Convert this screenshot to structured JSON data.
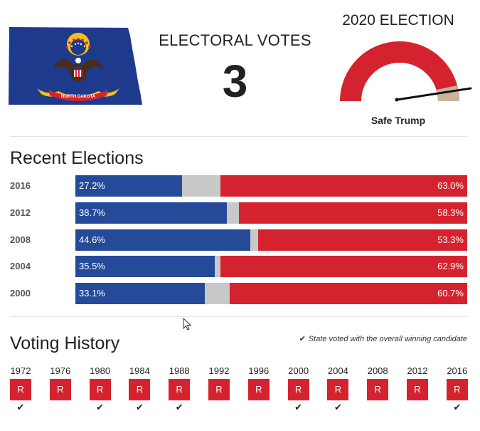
{
  "header": {
    "electoral_votes_label": "ELECTORAL VOTES",
    "electoral_votes": "3",
    "election_title": "2020 ELECTION",
    "rating": "Safe Trump",
    "rating_color": "#d4232f",
    "dem_color": "#254a9a",
    "other_color": "#c8c8c8",
    "gauge_tail_color": "#c9b49a",
    "flag_banner_text": "NORTH DAKOTA"
  },
  "recent_elections": {
    "title": "Recent Elections",
    "rows": [
      {
        "year": "2016",
        "dem": 27.2,
        "rep": 63.0,
        "dem_label": "27.2%",
        "rep_label": "63.0%"
      },
      {
        "year": "2012",
        "dem": 38.7,
        "rep": 58.3,
        "dem_label": "38.7%",
        "rep_label": "58.3%"
      },
      {
        "year": "2008",
        "dem": 44.6,
        "rep": 53.3,
        "dem_label": "44.6%",
        "rep_label": "53.3%"
      },
      {
        "year": "2004",
        "dem": 35.5,
        "rep": 62.9,
        "dem_label": "35.5%",
        "rep_label": "62.9%"
      },
      {
        "year": "2000",
        "dem": 33.1,
        "rep": 60.7,
        "dem_label": "33.1%",
        "rep_label": "60.7%"
      }
    ]
  },
  "voting_history": {
    "title": "Voting History",
    "legend": "State voted with the overall winning candidate",
    "items": [
      {
        "year": "1972",
        "party": "R",
        "winner": true
      },
      {
        "year": "1976",
        "party": "R",
        "winner": false
      },
      {
        "year": "1980",
        "party": "R",
        "winner": true
      },
      {
        "year": "1984",
        "party": "R",
        "winner": true
      },
      {
        "year": "1988",
        "party": "R",
        "winner": true
      },
      {
        "year": "1992",
        "party": "R",
        "winner": false
      },
      {
        "year": "1996",
        "party": "R",
        "winner": false
      },
      {
        "year": "2000",
        "party": "R",
        "winner": true
      },
      {
        "year": "2004",
        "party": "R",
        "winner": true
      },
      {
        "year": "2008",
        "party": "R",
        "winner": false
      },
      {
        "year": "2012",
        "party": "R",
        "winner": false
      },
      {
        "year": "2016",
        "party": "R",
        "winner": true
      }
    ]
  }
}
